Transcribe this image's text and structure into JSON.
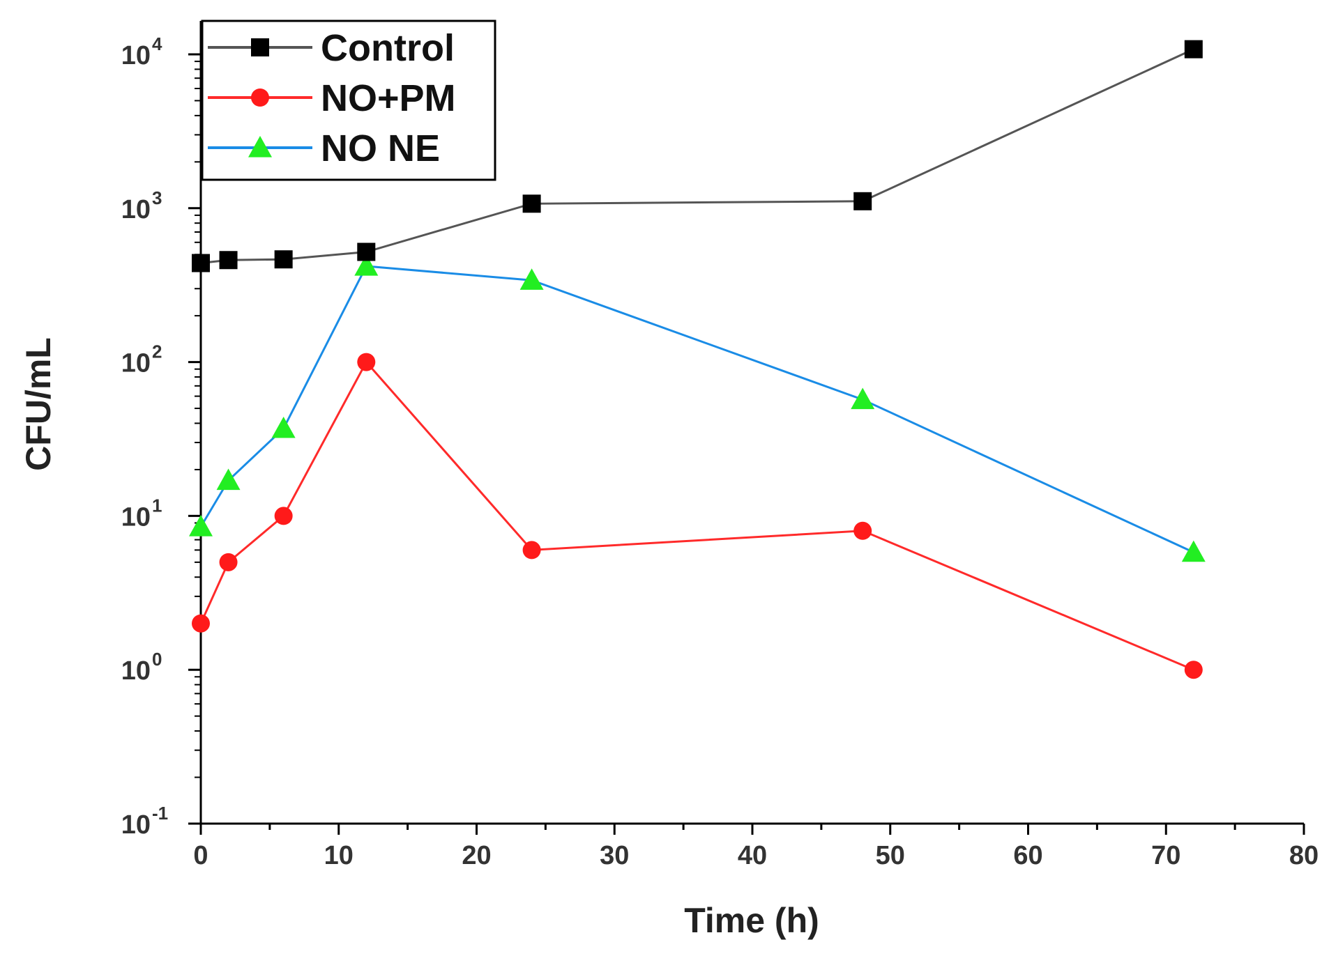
{
  "chart_data": {
    "type": "line",
    "title": "",
    "xlabel": "Time (h)",
    "ylabel": "CFU/mL",
    "xlim": [
      0,
      80
    ],
    "ylim": [
      0.1,
      10000
    ],
    "yscale": "log",
    "grid": false,
    "legend_position": "top-left",
    "x_ticks": [
      0,
      10,
      20,
      30,
      40,
      50,
      60,
      70,
      80
    ],
    "y_ticks": [
      {
        "value": 0.1,
        "base": "10",
        "exp": "-1"
      },
      {
        "value": 1,
        "base": "10",
        "exp": "0"
      },
      {
        "value": 10,
        "base": "10",
        "exp": "1"
      },
      {
        "value": 100,
        "base": "10",
        "exp": "2"
      },
      {
        "value": 1000,
        "base": "10",
        "exp": "3"
      },
      {
        "value": 10000,
        "base": "10",
        "exp": "4"
      }
    ],
    "x": [
      0,
      2,
      6,
      12,
      24,
      48,
      72
    ],
    "series": [
      {
        "name": "Control",
        "marker": "square",
        "line_color": "#555555",
        "marker_color": "#000000",
        "values": [
          440,
          460,
          465,
          520,
          1070,
          1110,
          10800
        ]
      },
      {
        "name": "NO+PM",
        "marker": "circle",
        "line_color": "#ff2a2a",
        "marker_color": "#ff1a1a",
        "values": [
          2,
          5,
          10,
          100,
          6,
          8,
          1
        ]
      },
      {
        "name": "NO NE",
        "marker": "triangle",
        "line_color": "#1a8ce6",
        "marker_color": "#22ee22",
        "values": [
          8.5,
          17,
          37,
          420,
          340,
          57,
          5.8
        ]
      }
    ]
  }
}
